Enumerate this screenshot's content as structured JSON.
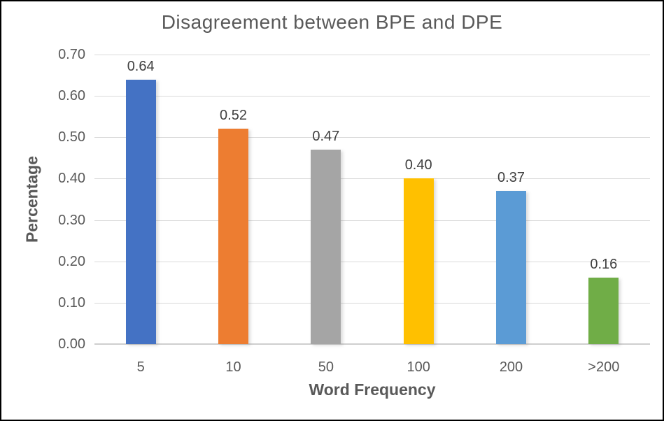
{
  "figure": {
    "background_color": "#FFFFFF",
    "frame_color": "#000000",
    "text_color": "#595959",
    "data_label_color": "#404040",
    "gridline_color": "#D9D9D9"
  },
  "chart_data": {
    "type": "bar",
    "title": "Disagreement between BPE and DPE",
    "xlabel": "Word Frequency",
    "ylabel": "Percentage",
    "categories": [
      "5",
      "10",
      "50",
      "100",
      "200",
      ">200"
    ],
    "values": [
      0.64,
      0.52,
      0.47,
      0.4,
      0.37,
      0.16
    ],
    "value_labels": [
      "0.64",
      "0.52",
      "0.47",
      "0.40",
      "0.37",
      "0.16"
    ],
    "bar_colors": [
      "#4472C4",
      "#ED7D31",
      "#A5A5A5",
      "#FFC000",
      "#5B9BD5",
      "#70AD47"
    ],
    "ylim": [
      0,
      0.7
    ],
    "ytick_labels": [
      "0.00",
      "0.10",
      "0.20",
      "0.30",
      "0.40",
      "0.50",
      "0.60",
      "0.70"
    ],
    "ytick_values": [
      0.0,
      0.1,
      0.2,
      0.3,
      0.4,
      0.5,
      0.6,
      0.7
    ],
    "grid": true,
    "legend_position": "none"
  }
}
